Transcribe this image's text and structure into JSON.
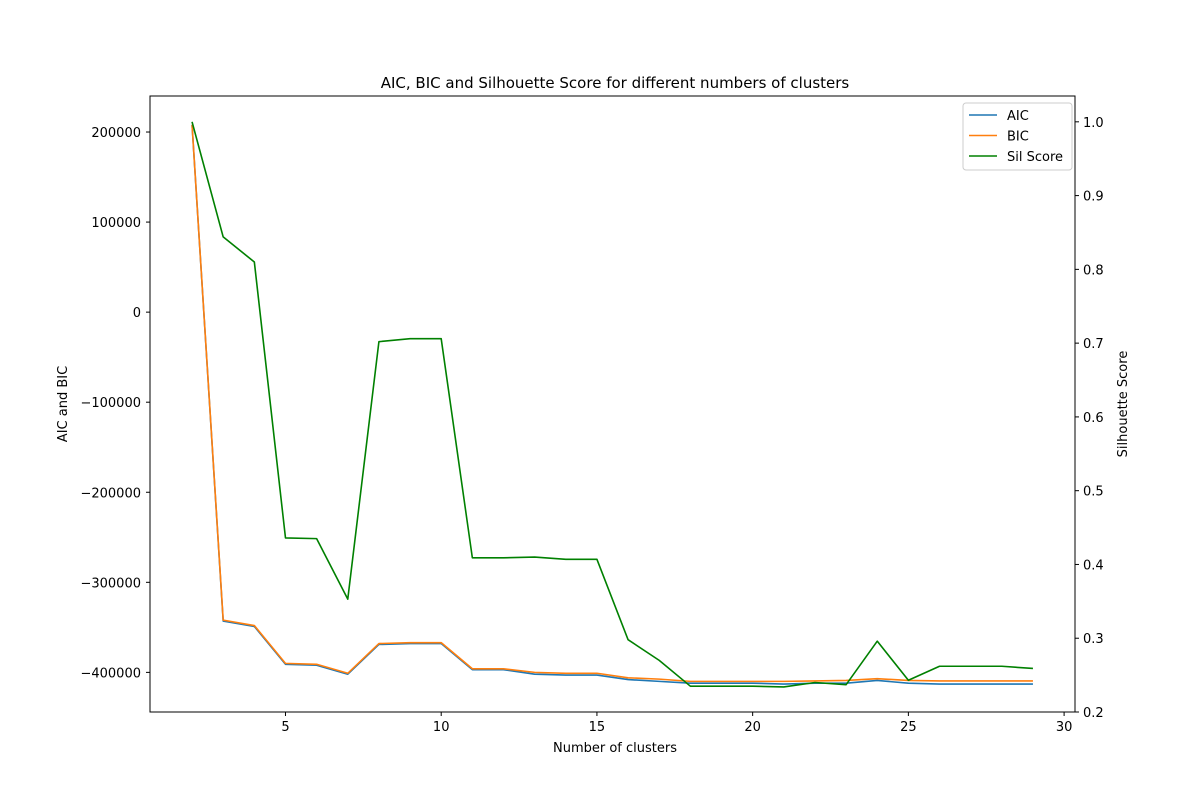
{
  "chart_data": {
    "type": "line",
    "title": "AIC, BIC and Silhouette Score for different numbers of clusters",
    "xlabel": "Number of clusters",
    "ylabel_left": "AIC and BIC",
    "ylabel_right": "Silhouette Score",
    "x": [
      2,
      3,
      4,
      5,
      6,
      7,
      8,
      9,
      10,
      11,
      12,
      13,
      14,
      15,
      16,
      17,
      18,
      19,
      20,
      21,
      22,
      23,
      24,
      25,
      26,
      27,
      28,
      29
    ],
    "xlim": [
      0.65,
      30.35
    ],
    "xticks": [
      5,
      10,
      15,
      20,
      25,
      30
    ],
    "ylim_left": [
      -444000,
      240000
    ],
    "yticks_left": [
      -400000,
      -300000,
      -200000,
      -100000,
      0,
      100000,
      200000
    ],
    "yticks_left_labels": [
      "−400000",
      "−300000",
      "−200000",
      "−100000",
      "0",
      "100000",
      "200000"
    ],
    "ylim_right": [
      0.2,
      1.035
    ],
    "yticks_right": [
      0.2,
      0.3,
      0.4,
      0.5,
      0.6,
      0.7,
      0.8,
      0.9,
      1.0
    ],
    "yticks_right_labels": [
      "0.2",
      "0.3",
      "0.4",
      "0.5",
      "0.6",
      "0.7",
      "0.8",
      "0.9",
      "1.0"
    ],
    "series": [
      {
        "name": "AIC",
        "axis": "left",
        "color": "#1f77b4",
        "values": [
          208000,
          -343000,
          -349000,
          -391000,
          -392000,
          -402000,
          -369000,
          -368000,
          -368000,
          -397000,
          -397000,
          -402000,
          -403000,
          -403000,
          -408000,
          -410000,
          -412000,
          -412000,
          -412000,
          -413000,
          -412000,
          -412000,
          -409000,
          -412000,
          -413000,
          -413000,
          -413000,
          -413000
        ]
      },
      {
        "name": "BIC",
        "axis": "left",
        "color": "#ff7f0e",
        "values": [
          208000,
          -342000,
          -348000,
          -390000,
          -391000,
          -401000,
          -368000,
          -367000,
          -367000,
          -396000,
          -396000,
          -400000,
          -401000,
          -401000,
          -406000,
          -407500,
          -410000,
          -410000,
          -410000,
          -410000,
          -409500,
          -409000,
          -407000,
          -409000,
          -409500,
          -409500,
          -409500,
          -409500
        ]
      },
      {
        "name": "Sil Score",
        "axis": "right",
        "color": "#008000",
        "values": [
          1.0,
          0.844,
          0.81,
          0.436,
          0.435,
          0.353,
          0.702,
          0.706,
          0.706,
          0.409,
          0.409,
          0.41,
          0.407,
          0.407,
          0.298,
          0.27,
          0.235,
          0.235,
          0.235,
          0.234,
          0.24,
          0.237,
          0.296,
          0.243,
          0.262,
          0.262,
          0.262,
          0.259
        ]
      }
    ],
    "legend_position": "top-right"
  }
}
